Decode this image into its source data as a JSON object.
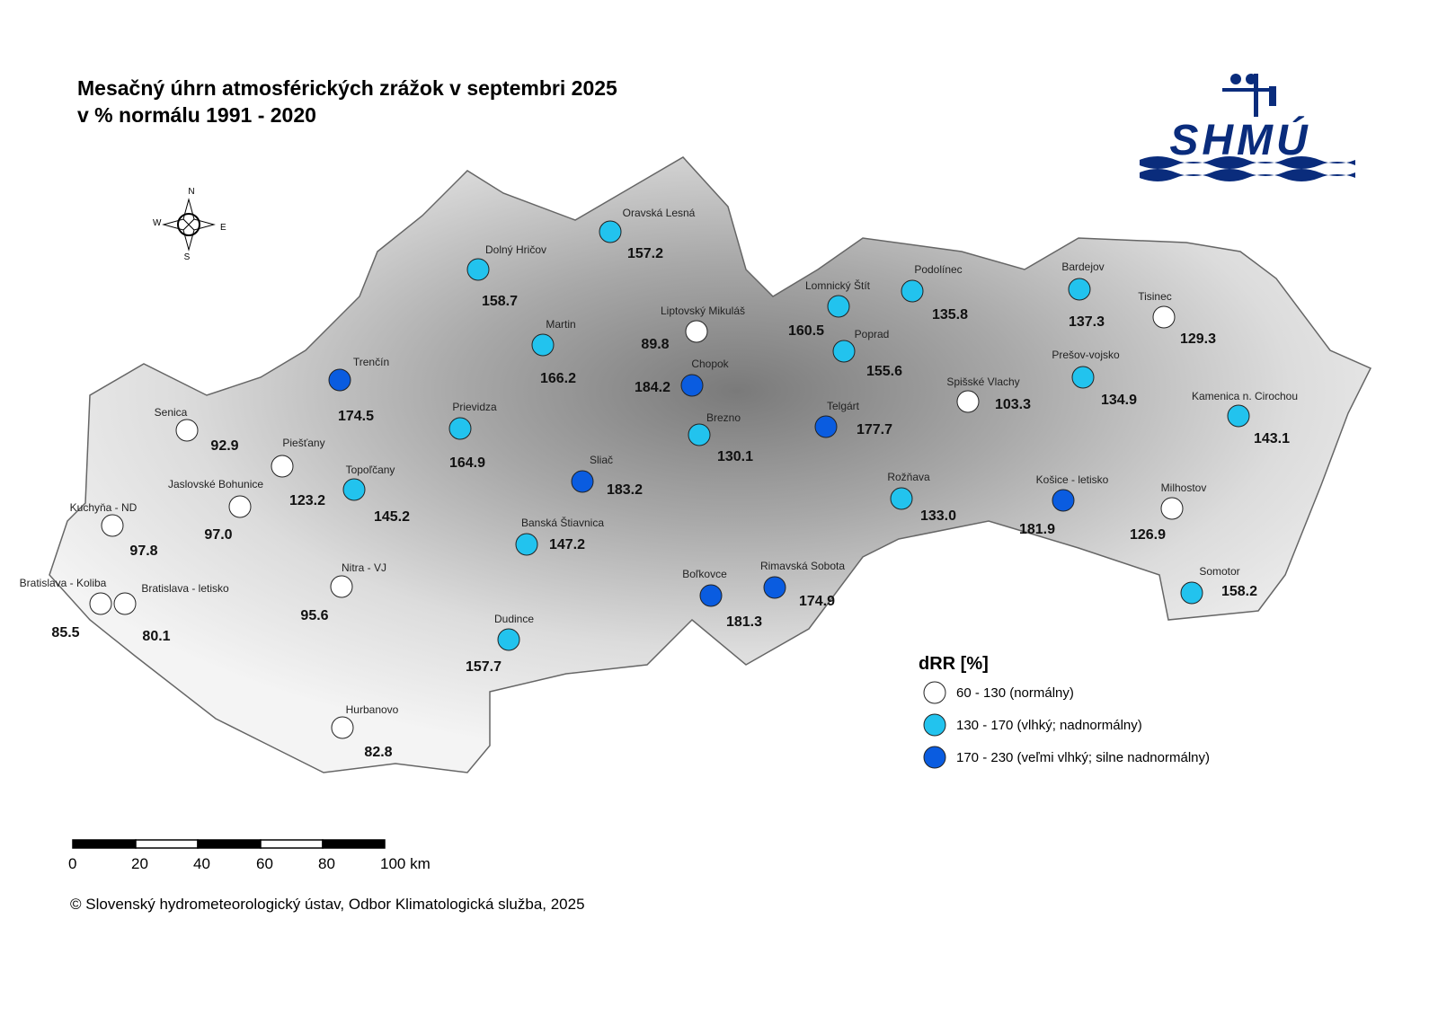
{
  "header": {
    "title_line1": "Mesačný úhrn atmosférických zrážok v septembri 2025",
    "title_line2": "v % normálu 1991 - 2020"
  },
  "logo": {
    "text": "SHMÚ"
  },
  "compass": {
    "n": "N",
    "e": "E",
    "s": "S",
    "w": "W"
  },
  "legend": {
    "title": "dRR [%]",
    "items": [
      {
        "label": "60 - 130 (normálny)",
        "color": "#ffffff"
      },
      {
        "label": "130 - 170 (vlhký; nadnormálny)",
        "color": "#22c3ee"
      },
      {
        "label": "170 - 230 (veľmi vlhký; silne nadnormálny)",
        "color": "#0a5ce0"
      }
    ]
  },
  "stations": [
    {
      "name": "Oravská Lesná",
      "value": "157.2",
      "class": 1
    },
    {
      "name": "Dolný Hričov",
      "value": "158.7",
      "class": 1
    },
    {
      "name": "Martin",
      "value": "166.2",
      "class": 1
    },
    {
      "name": "Liptovský Mikuláš",
      "value": "89.8",
      "class": 0
    },
    {
      "name": "Chopok",
      "value": "184.2",
      "class": 2
    },
    {
      "name": "Trenčín",
      "value": "174.5",
      "class": 2
    },
    {
      "name": "Prievidza",
      "value": "164.9",
      "class": 1
    },
    {
      "name": "Senica",
      "value": "92.9",
      "class": 0
    },
    {
      "name": "Piešťany",
      "value": "123.2",
      "class": 0
    },
    {
      "name": "Topoľčany",
      "value": "145.2",
      "class": 1
    },
    {
      "name": "Jaslovské Bohunice",
      "value": "97.0",
      "class": 0
    },
    {
      "name": "Kuchyňa - ND",
      "value": "97.8",
      "class": 0
    },
    {
      "name": "Bratislava - Koliba",
      "value": "85.5",
      "class": 0
    },
    {
      "name": "Bratislava - letisko",
      "value": "80.1",
      "class": 0
    },
    {
      "name": "Nitra - VJ",
      "value": "95.6",
      "class": 0
    },
    {
      "name": "Hurbanovo",
      "value": "82.8",
      "class": 0
    },
    {
      "name": "Dudince",
      "value": "157.7",
      "class": 1
    },
    {
      "name": "Banská Štiavnica",
      "value": "147.2",
      "class": 1
    },
    {
      "name": "Sliač",
      "value": "183.2",
      "class": 2
    },
    {
      "name": "Brezno",
      "value": "130.1",
      "class": 1
    },
    {
      "name": "Telgárt",
      "value": "177.7",
      "class": 2
    },
    {
      "name": "Lomnický Štít",
      "value": "160.5",
      "class": 1
    },
    {
      "name": "Podolínec",
      "value": "135.8",
      "class": 1
    },
    {
      "name": "Poprad",
      "value": "155.6",
      "class": 1
    },
    {
      "name": "Spišské Vlachy",
      "value": "103.3",
      "class": 0
    },
    {
      "name": "Rožňava",
      "value": "133.0",
      "class": 1
    },
    {
      "name": "Bardejov",
      "value": "137.3",
      "class": 1
    },
    {
      "name": "Tisinec",
      "value": "129.3",
      "class": 0
    },
    {
      "name": "Prešov-vojsko",
      "value": "134.9",
      "class": 1
    },
    {
      "name": "Kamenica n. Cirochou",
      "value": "143.1",
      "class": 1
    },
    {
      "name": "Košice - letisko",
      "value": "181.9",
      "class": 2
    },
    {
      "name": "Milhostov",
      "value": "126.9",
      "class": 0
    },
    {
      "name": "Somotor",
      "value": "158.2",
      "class": 1
    },
    {
      "name": "Boľkovce",
      "value": "181.3",
      "class": 2
    },
    {
      "name": "Rimavská Sobota",
      "value": "174.9",
      "class": 2
    }
  ],
  "scale_bar": {
    "labels": [
      "0",
      "20",
      "40",
      "60",
      "80",
      "100 km"
    ]
  },
  "footer": {
    "copyright": "© Slovenský hydrometeorologický ústav, Odbor Klimatologická služba, 2025"
  }
}
